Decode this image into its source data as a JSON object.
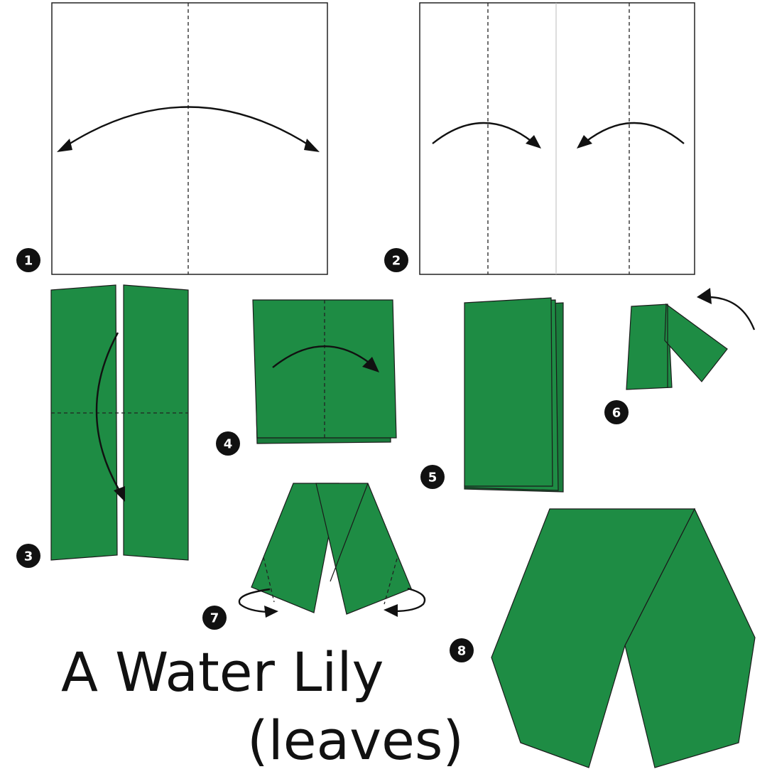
{
  "title": {
    "line1": "A Water Lily",
    "line2": "(leaves)"
  },
  "steps": [
    {
      "number": "1"
    },
    {
      "number": "2"
    },
    {
      "number": "3"
    },
    {
      "number": "4"
    },
    {
      "number": "5"
    },
    {
      "number": "6"
    },
    {
      "number": "7"
    },
    {
      "number": "8"
    }
  ],
  "colors": {
    "paper_green": "#1e8c44",
    "paper_white": "#ffffff",
    "outline": "#222222",
    "badge": "#111111"
  },
  "icons": {
    "fold_arrow": "curved-arrow-icon",
    "fold_line": "dashed-fold-line",
    "step_marker": "numbered-circle-badge"
  }
}
